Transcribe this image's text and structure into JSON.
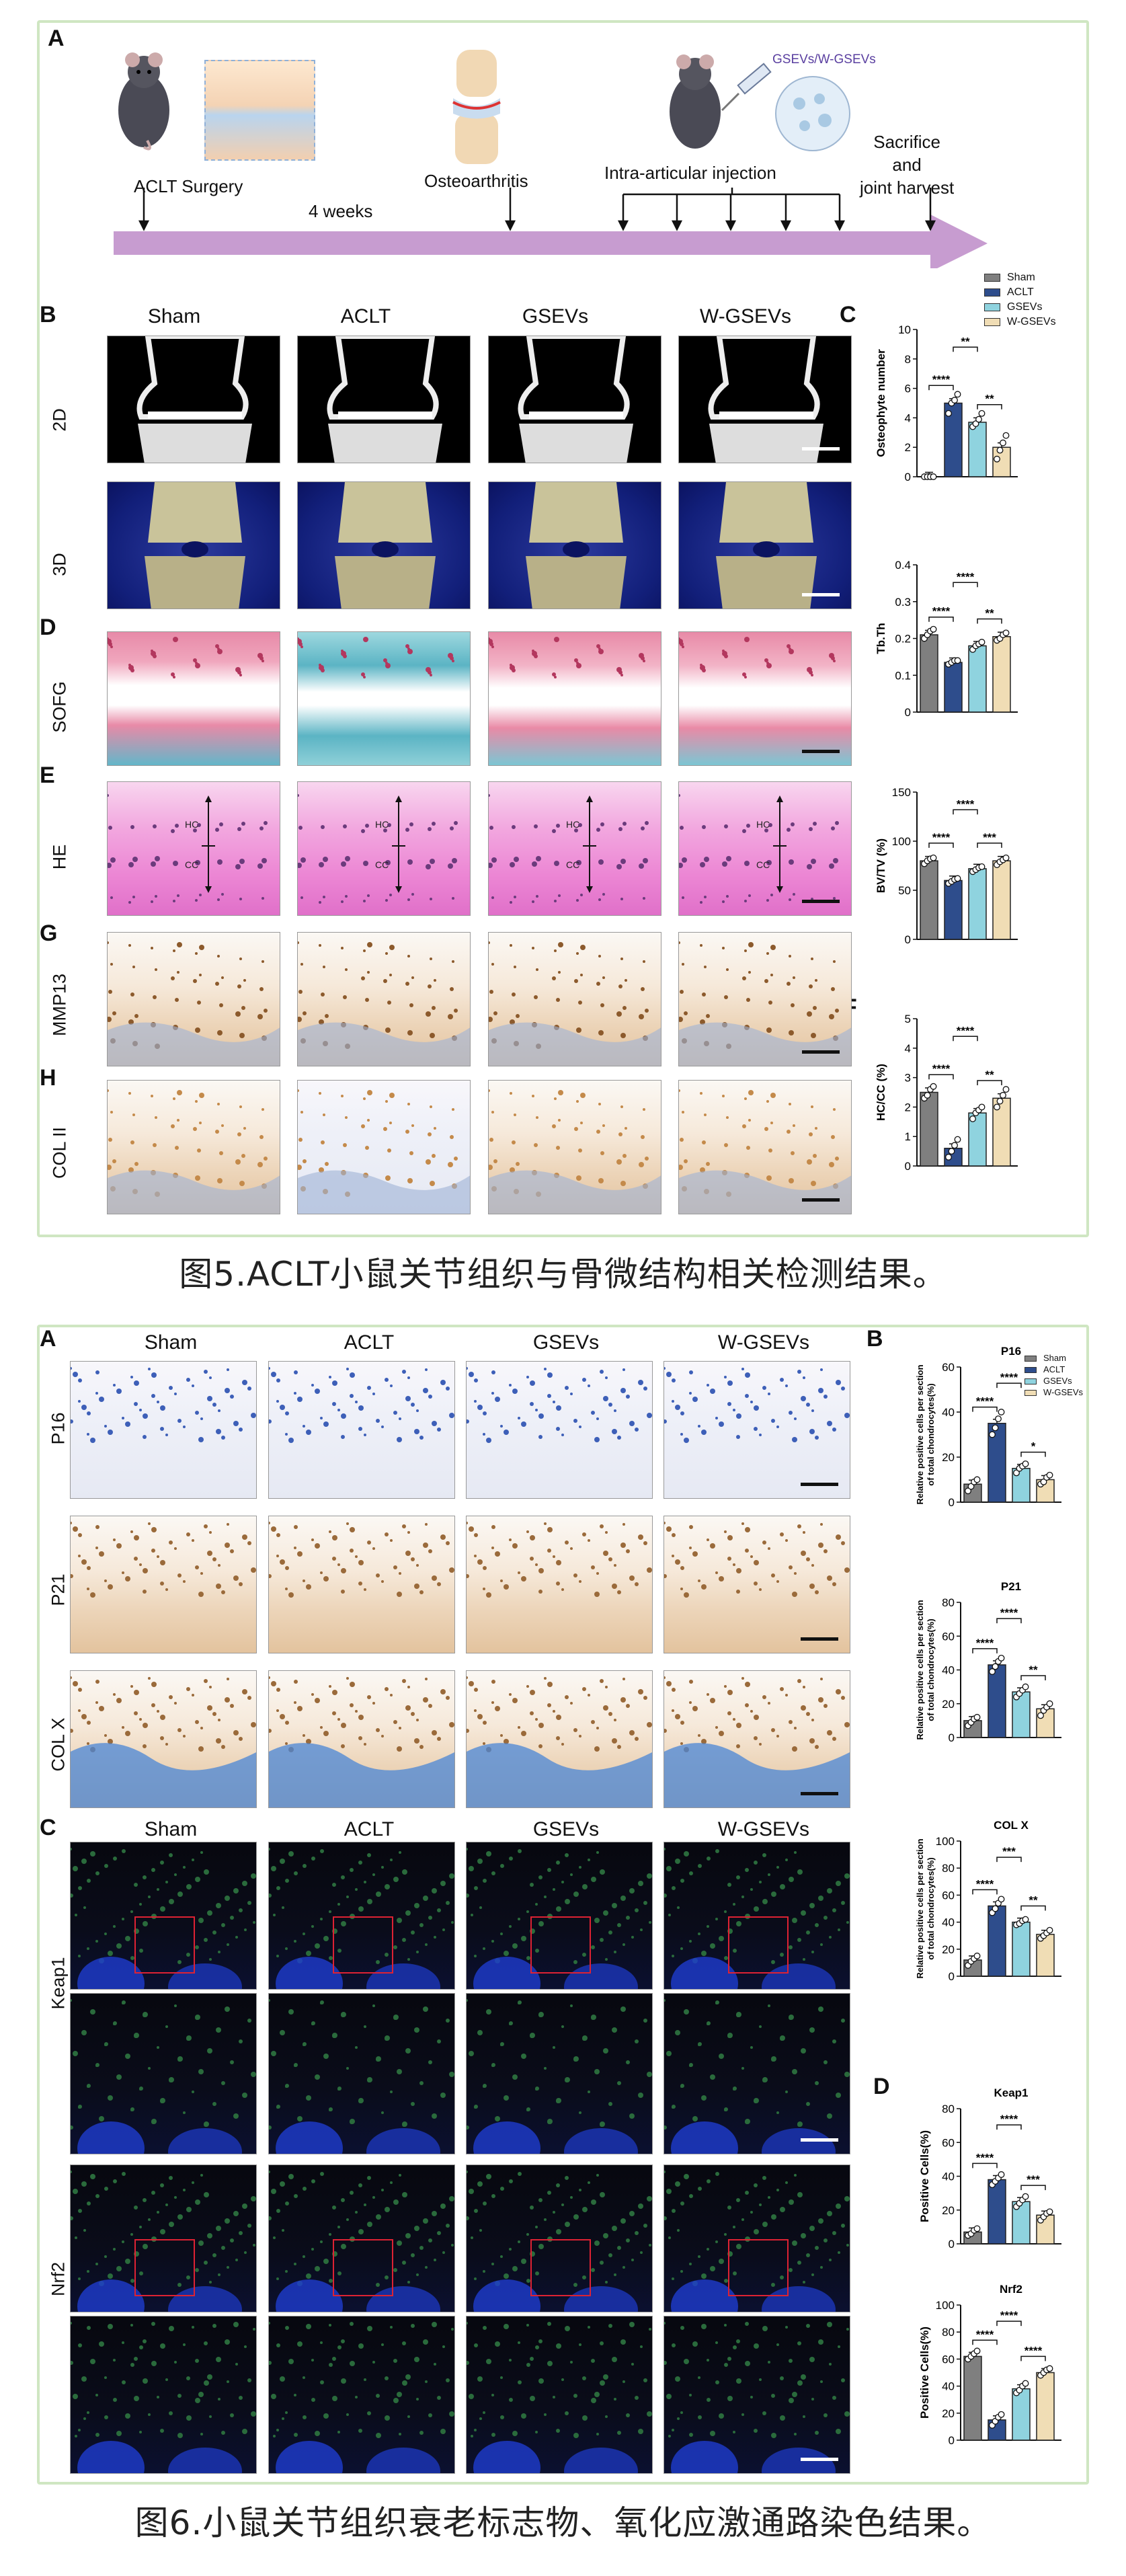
{
  "colors": {
    "sham": "#7f7f7f",
    "aclt": "#2e4d8c",
    "gsevs": "#8fd3df",
    "wgsevs": "#f0ddb5",
    "arrow": "#c79cd0",
    "frame": "#cfe6c2"
  },
  "fig5": {
    "caption": "图5.ACLT小鼠关节组织与骨微结构相关检测结果。",
    "panel_letters": [
      "A",
      "B",
      "C",
      "D",
      "E",
      "F",
      "G",
      "H"
    ],
    "timeline": {
      "aclt_surgery": "ACLT Surgery",
      "weeks": "4 weeks",
      "osteoarthritis": "Osteoarthritis",
      "injection": "Intra-articular injection",
      "agent": "GSEVs/W-GSEVs",
      "sacrifice": "Sacrifice\nand\njoint harvest"
    },
    "columns": [
      "Sham",
      "ACLT",
      "GSEVs",
      "W-GSEVs"
    ],
    "rows": [
      "2D",
      "3D",
      "SOFG",
      "HE",
      "MMP13",
      "COL II"
    ],
    "he_labels": {
      "hc": "HC",
      "cc": "CC"
    },
    "legend": [
      "Sham",
      "ACLT",
      "GSEVs",
      "W-GSEVs"
    ]
  },
  "fig6": {
    "caption": "图6.小鼠关节组织衰老标志物、氧化应激通路染色结果。",
    "panel_letters": [
      "A",
      "B",
      "C",
      "D"
    ],
    "columns": [
      "Sham",
      "ACLT",
      "GSEVs",
      "W-GSEVs"
    ],
    "rows_a": [
      "P16",
      "P21",
      "COL X"
    ],
    "rows_c": [
      "Keap1",
      "Nrf2"
    ],
    "legend": [
      "Sham",
      "ACLT",
      "GSEVs",
      "W-GSEVs"
    ]
  },
  "chart_data": [
    {
      "id": "c_osteo",
      "type": "bar",
      "figure": "5C",
      "categories": [
        "Sham",
        "ACLT",
        "GSEVs",
        "W-GSEVs"
      ],
      "values": [
        0,
        5,
        3.7,
        2
      ],
      "points": [
        [
          0,
          0,
          0,
          0
        ],
        [
          4.3,
          5,
          5.2,
          5.6
        ],
        [
          3.4,
          3.6,
          3.9,
          4.3
        ],
        [
          1.2,
          1.8,
          2.3,
          2.8
        ]
      ],
      "ylabel": "Osteophyte number",
      "ylim": [
        0,
        10
      ],
      "yticks": [
        0,
        2,
        4,
        6,
        8,
        10
      ],
      "sig": [
        {
          "a": 1,
          "b": 2,
          "label": "****",
          "lvl": 1
        },
        {
          "a": 2,
          "b": 3,
          "label": "**",
          "lvl": 3
        },
        {
          "a": 3,
          "b": 4,
          "label": "**",
          "lvl": 1
        }
      ]
    },
    {
      "id": "c_tbth",
      "type": "bar",
      "figure": "5C",
      "categories": [
        "Sham",
        "ACLT",
        "GSEVs",
        "W-GSEVs"
      ],
      "values": [
        0.21,
        0.135,
        0.18,
        0.205
      ],
      "points": [
        [
          0.2,
          0.21,
          0.22,
          0.225
        ],
        [
          0.13,
          0.135,
          0.14,
          0.14
        ],
        [
          0.17,
          0.18,
          0.185,
          0.19
        ],
        [
          0.195,
          0.2,
          0.21,
          0.215
        ]
      ],
      "ylabel": "Tb.Th",
      "ylim": [
        0,
        0.4
      ],
      "yticks": [
        0,
        0.1,
        0.2,
        0.3,
        0.4
      ],
      "sig": [
        {
          "a": 1,
          "b": 2,
          "label": "****",
          "lvl": 1
        },
        {
          "a": 2,
          "b": 3,
          "label": "****",
          "lvl": 3
        },
        {
          "a": 3,
          "b": 4,
          "label": "**",
          "lvl": 1
        }
      ]
    },
    {
      "id": "c_bvtv",
      "type": "bar",
      "figure": "5E",
      "categories": [
        "Sham",
        "ACLT",
        "GSEVs",
        "W-GSEVs"
      ],
      "values": [
        80,
        60,
        72,
        80
      ],
      "points": [
        [
          77,
          80,
          82,
          83
        ],
        [
          57,
          59,
          61,
          62
        ],
        [
          69,
          71,
          73,
          74
        ],
        [
          76,
          79,
          81,
          83
        ]
      ],
      "ylabel": "BV/TV (%)",
      "ylim": [
        0,
        150
      ],
      "yticks": [
        0,
        50,
        100,
        150
      ],
      "sig": [
        {
          "a": 1,
          "b": 2,
          "label": "****",
          "lvl": 1
        },
        {
          "a": 2,
          "b": 3,
          "label": "****",
          "lvl": 3
        },
        {
          "a": 3,
          "b": 4,
          "label": "***",
          "lvl": 1
        }
      ]
    },
    {
      "id": "c_hccc",
      "type": "bar",
      "figure": "5F",
      "categories": [
        "Sham",
        "ACLT",
        "GSEVs",
        "W-GSEVs"
      ],
      "values": [
        2.5,
        0.6,
        1.8,
        2.3
      ],
      "points": [
        [
          2.3,
          2.4,
          2.6,
          2.7
        ],
        [
          0.3,
          0.5,
          0.7,
          0.9
        ],
        [
          1.6,
          1.8,
          1.9,
          2.0
        ],
        [
          2.0,
          2.2,
          2.4,
          2.6
        ]
      ],
      "ylabel": "HC/CC (%)",
      "ylim": [
        0,
        5
      ],
      "yticks": [
        0,
        1,
        2,
        3,
        4,
        5
      ],
      "sig": [
        {
          "a": 1,
          "b": 2,
          "label": "****",
          "lvl": 1
        },
        {
          "a": 2,
          "b": 3,
          "label": "****",
          "lvl": 3
        },
        {
          "a": 3,
          "b": 4,
          "label": "**",
          "lvl": 1
        }
      ]
    },
    {
      "id": "c_p16",
      "type": "bar",
      "figure": "6B",
      "title": "P16",
      "categories": [
        "Sham",
        "ACLT",
        "GSEVs",
        "W-GSEVs"
      ],
      "values": [
        8,
        35,
        15,
        10
      ],
      "points": [
        [
          5,
          7,
          9,
          10
        ],
        [
          30,
          33,
          37,
          40
        ],
        [
          13,
          15,
          16,
          17
        ],
        [
          8,
          9,
          11,
          12
        ]
      ],
      "ylabel": "Relative positive cells per section\nof total chondrocytes(%)",
      "ylim": [
        0,
        60
      ],
      "yticks": [
        0,
        20,
        40,
        60
      ],
      "sig": [
        {
          "a": 1,
          "b": 2,
          "label": "****",
          "lvl": 1
        },
        {
          "a": 2,
          "b": 3,
          "label": "****",
          "lvl": 3
        },
        {
          "a": 3,
          "b": 4,
          "label": "*",
          "lvl": 1
        }
      ]
    },
    {
      "id": "c_p21",
      "type": "bar",
      "figure": "6B",
      "title": "P21",
      "categories": [
        "Sham",
        "ACLT",
        "GSEVs",
        "W-GSEVs"
      ],
      "values": [
        10,
        43,
        27,
        17
      ],
      "points": [
        [
          7,
          9,
          11,
          12
        ],
        [
          39,
          42,
          45,
          47
        ],
        [
          24,
          26,
          28,
          30
        ],
        [
          13,
          16,
          18,
          20
        ]
      ],
      "ylabel": "Relative positive cells per section\nof total chondrocytes(%)",
      "ylim": [
        0,
        80
      ],
      "yticks": [
        0,
        20,
        40,
        60,
        80
      ],
      "sig": [
        {
          "a": 1,
          "b": 2,
          "label": "****",
          "lvl": 1
        },
        {
          "a": 2,
          "b": 3,
          "label": "****",
          "lvl": 3
        },
        {
          "a": 3,
          "b": 4,
          "label": "**",
          "lvl": 1
        }
      ]
    },
    {
      "id": "c_colx",
      "type": "bar",
      "figure": "6B",
      "title": "COL X",
      "categories": [
        "Sham",
        "ACLT",
        "GSEVs",
        "W-GSEVs"
      ],
      "values": [
        12,
        52,
        40,
        31
      ],
      "points": [
        [
          8,
          11,
          13,
          15
        ],
        [
          47,
          50,
          54,
          57
        ],
        [
          38,
          39,
          41,
          42
        ],
        [
          28,
          30,
          32,
          34
        ]
      ],
      "ylabel": "Relative positive cells per section\nof total chondrocytes(%)",
      "ylim": [
        0,
        100
      ],
      "yticks": [
        0,
        20,
        40,
        60,
        80,
        100
      ],
      "sig": [
        {
          "a": 1,
          "b": 2,
          "label": "****",
          "lvl": 1
        },
        {
          "a": 2,
          "b": 3,
          "label": "***",
          "lvl": 3
        },
        {
          "a": 3,
          "b": 4,
          "label": "**",
          "lvl": 1
        }
      ]
    },
    {
      "id": "c_keap1",
      "type": "bar",
      "figure": "6D",
      "title": "Keap1",
      "categories": [
        "Sham",
        "ACLT",
        "GSEVs",
        "W-GSEVs"
      ],
      "values": [
        7,
        38,
        25,
        17
      ],
      "points": [
        [
          5,
          6,
          8,
          9
        ],
        [
          35,
          37,
          39,
          41
        ],
        [
          22,
          24,
          26,
          28
        ],
        [
          14,
          16,
          18,
          19
        ]
      ],
      "ylabel": "Positive Cells(%)",
      "ylim": [
        0,
        80
      ],
      "yticks": [
        0,
        20,
        40,
        60,
        80
      ],
      "sig": [
        {
          "a": 1,
          "b": 2,
          "label": "****",
          "lvl": 1
        },
        {
          "a": 2,
          "b": 3,
          "label": "****",
          "lvl": 3
        },
        {
          "a": 3,
          "b": 4,
          "label": "***",
          "lvl": 1
        }
      ]
    },
    {
      "id": "c_nrf2",
      "type": "bar",
      "figure": "6D",
      "title": "Nrf2",
      "categories": [
        "Sham",
        "ACLT",
        "GSEVs",
        "W-GSEVs"
      ],
      "values": [
        62,
        15,
        38,
        50
      ],
      "points": [
        [
          60,
          62,
          64,
          66
        ],
        [
          11,
          14,
          17,
          19
        ],
        [
          35,
          37,
          40,
          42
        ],
        [
          48,
          50,
          52,
          53
        ]
      ],
      "ylabel": "Positive Cells(%)",
      "ylim": [
        0,
        100
      ],
      "yticks": [
        0,
        20,
        40,
        60,
        80,
        100
      ],
      "sig": [
        {
          "a": 1,
          "b": 2,
          "label": "****",
          "lvl": 1
        },
        {
          "a": 2,
          "b": 3,
          "label": "****",
          "lvl": 3
        },
        {
          "a": 3,
          "b": 4,
          "label": "****",
          "lvl": 1
        }
      ]
    }
  ]
}
